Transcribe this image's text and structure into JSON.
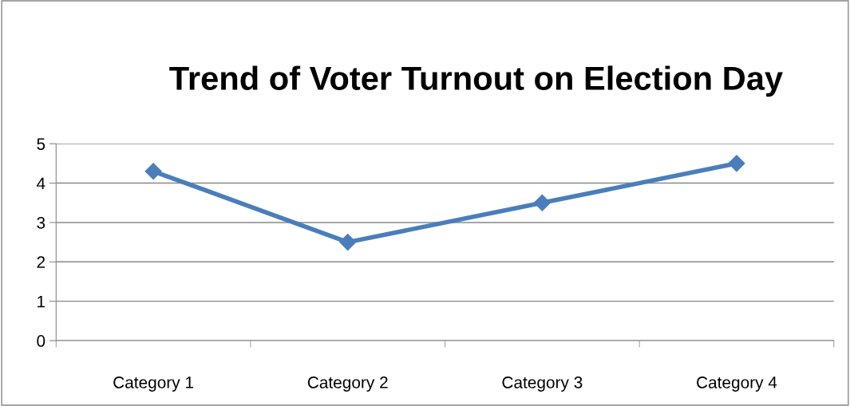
{
  "chart_data": {
    "type": "line",
    "title": "Trend of Voter Turnout on Election Day",
    "categories": [
      "Category 1",
      "Category 2",
      "Category 3",
      "Category 4"
    ],
    "series": [
      {
        "color": "#4a7ebb",
        "values": [
          4.3,
          2.5,
          3.5,
          4.5
        ]
      }
    ],
    "ylim": [
      0,
      5
    ],
    "yticks": [
      0,
      1,
      2,
      3,
      4,
      5
    ],
    "grid": "y",
    "marker": "diamond",
    "line_style": "solid",
    "legend": false
  }
}
